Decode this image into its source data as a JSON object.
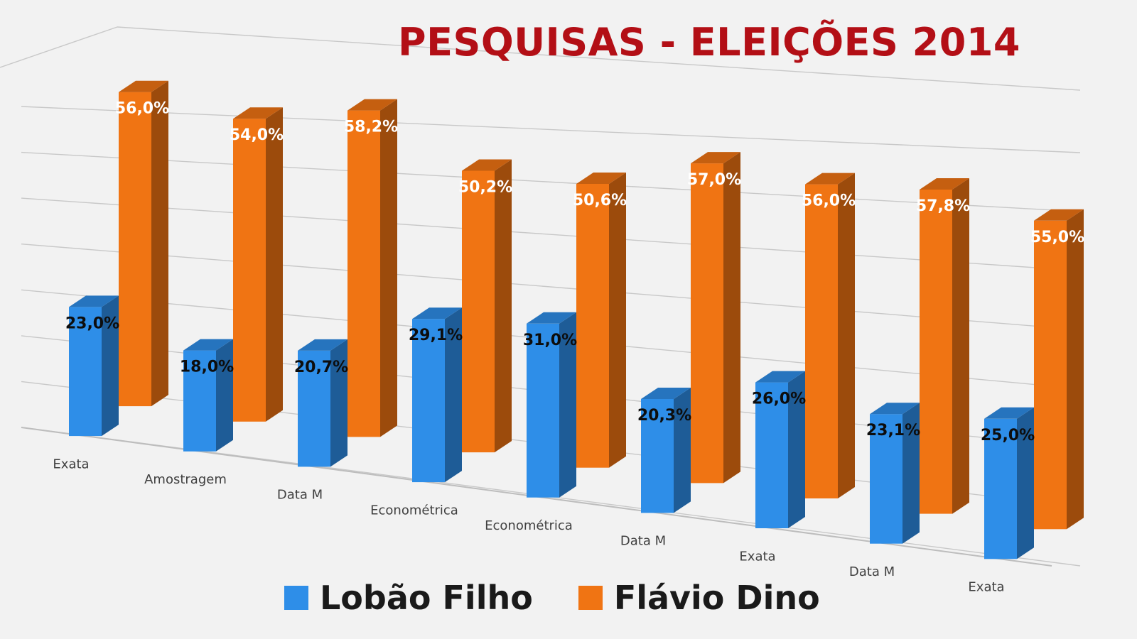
{
  "chart_data": {
    "type": "bar",
    "title": "PESQUISAS - ELEIÇÕES 2014",
    "categories": [
      "Exata",
      "Amostragem",
      "Data M",
      "Econométrica",
      "Econométrica",
      "Data M",
      "Exata",
      "Data M",
      "Exata"
    ],
    "series": [
      {
        "name": "Lobão Filho",
        "color": "#2e8ee8",
        "values": [
          23.0,
          18.0,
          20.7,
          29.1,
          31.0,
          20.3,
          26.0,
          23.1,
          25.0
        ],
        "labels": [
          "23,0%",
          "18,0%",
          "20,7%",
          "29,1%",
          "31,0%",
          "20,3%",
          "26,0%",
          "23,1%",
          "25,0%"
        ]
      },
      {
        "name": "Flávio Dino",
        "color": "#f07413",
        "values": [
          56.0,
          54.0,
          58.2,
          50.2,
          50.6,
          57.0,
          56.0,
          57.8,
          55.0
        ],
        "labels": [
          "56,0%",
          "54,0%",
          "58,2%",
          "50,2%",
          "50,6%",
          "57,0%",
          "56,0%",
          "57,8%",
          "55,0%"
        ]
      }
    ],
    "chart_style": "3d-clustered-column",
    "grid": true,
    "legend_position": "bottom",
    "ylim": [
      0,
      70
    ]
  }
}
